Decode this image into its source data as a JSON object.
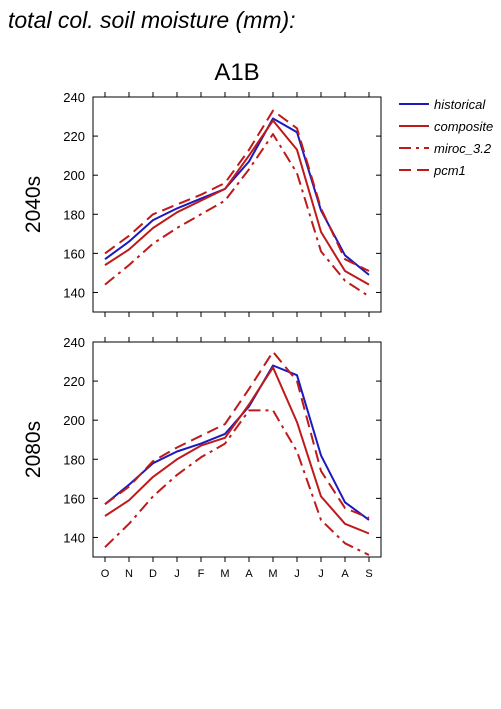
{
  "header": {
    "title": "total col. soil moisture (mm):",
    "scenario": "A1B"
  },
  "chart_data": [
    {
      "type": "line",
      "period_label": "2040s",
      "categories": [
        "O",
        "N",
        "D",
        "J",
        "F",
        "M",
        "A",
        "M",
        "J",
        "J",
        "A",
        "S"
      ],
      "ylim": [
        130,
        240
      ],
      "yticks": [
        140,
        160,
        180,
        200,
        220,
        240
      ],
      "series": [
        {
          "name": "historical",
          "color": "#1a1abf",
          "dash": "solid",
          "values": [
            157,
            166,
            177,
            183,
            188,
            193,
            207,
            229,
            222,
            182,
            159,
            149
          ]
        },
        {
          "name": "composite",
          "color": "#bf1a1a",
          "dash": "solid",
          "values": [
            154,
            162,
            173,
            181,
            187,
            193,
            210,
            228,
            213,
            171,
            151,
            144
          ]
        },
        {
          "name": "miroc_3.2",
          "color": "#bf1a1a",
          "dash": "dashdot",
          "values": [
            144,
            154,
            165,
            173,
            180,
            187,
            203,
            221,
            201,
            161,
            146,
            138
          ]
        },
        {
          "name": "pcm1",
          "color": "#bf1a1a",
          "dash": "dash",
          "values": [
            160,
            169,
            180,
            185,
            190,
            196,
            213,
            233,
            224,
            183,
            157,
            151
          ]
        }
      ]
    },
    {
      "type": "line",
      "period_label": "2080s",
      "categories": [
        "O",
        "N",
        "D",
        "J",
        "F",
        "M",
        "A",
        "M",
        "J",
        "J",
        "A",
        "S"
      ],
      "ylim": [
        130,
        240
      ],
      "yticks": [
        140,
        160,
        180,
        200,
        220,
        240
      ],
      "series": [
        {
          "name": "historical",
          "color": "#1a1abf",
          "dash": "solid",
          "values": [
            157,
            167,
            178,
            184,
            188,
            193,
            207,
            228,
            223,
            182,
            158,
            149
          ]
        },
        {
          "name": "composite",
          "color": "#bf1a1a",
          "dash": "solid",
          "values": [
            151,
            159,
            171,
            180,
            187,
            191,
            208,
            227,
            199,
            161,
            147,
            142
          ]
        },
        {
          "name": "miroc_3.2",
          "color": "#bf1a1a",
          "dash": "dashdot",
          "values": [
            135,
            147,
            161,
            172,
            181,
            188,
            205,
            205,
            184,
            149,
            137,
            131
          ]
        },
        {
          "name": "pcm1",
          "color": "#bf1a1a",
          "dash": "dash",
          "values": [
            157,
            166,
            179,
            186,
            192,
            198,
            216,
            235,
            220,
            174,
            155,
            150
          ]
        }
      ]
    }
  ],
  "legend": [
    {
      "label": "historical",
      "color": "#1a1abf",
      "dash": "solid"
    },
    {
      "label": "composite",
      "color": "#bf1a1a",
      "dash": "solid"
    },
    {
      "label": "miroc_3.2",
      "color": "#bf1a1a",
      "dash": "dashdot"
    },
    {
      "label": "pcm1",
      "color": "#bf1a1a",
      "dash": "dash"
    }
  ]
}
